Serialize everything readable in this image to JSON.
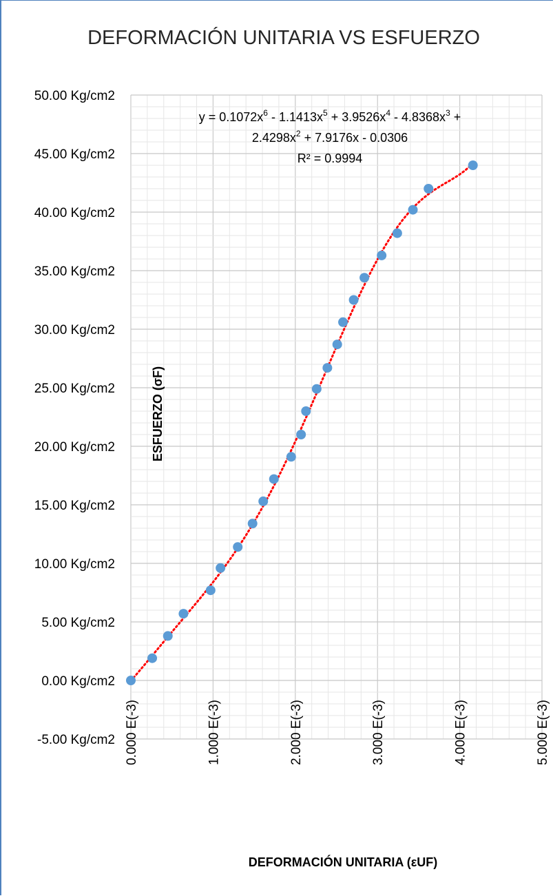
{
  "chart_data": {
    "type": "scatter",
    "title": "DEFORMACIÓN UNITARIA VS ESFUERZO",
    "xlabel": "DEFORMACIÓN UNITARIA (εUF)",
    "ylabel": "ESFUERZO (σF)",
    "xlim": [
      0,
      5
    ],
    "ylim": [
      -5,
      50
    ],
    "x_ticks": [
      0,
      1,
      2,
      3,
      4,
      5
    ],
    "x_tick_labels": [
      "0.000 E(-3)",
      "1.000 E(-3)",
      "2.000 E(-3)",
      "3.000 E(-3)",
      "4.000 E(-3)",
      "5.000 E(-3)"
    ],
    "y_ticks": [
      -5,
      0,
      5,
      10,
      15,
      20,
      25,
      30,
      35,
      40,
      45,
      50
    ],
    "y_tick_labels": [
      "-5.00 Kg/cm2",
      "0.00 Kg/cm2",
      "5.00 Kg/cm2",
      "10.00 Kg/cm2",
      "15.00 Kg/cm2",
      "20.00 Kg/cm2",
      "25.00 Kg/cm2",
      "30.00 Kg/cm2",
      "35.00 Kg/cm2",
      "40.00 Kg/cm2",
      "45.00 Kg/cm2",
      "50.00 Kg/cm2"
    ],
    "grid": true,
    "minor_grid": true,
    "series": [
      {
        "marker_color": "#5b9bd5",
        "x": [
          0.0,
          0.26,
          0.45,
          0.64,
          0.97,
          1.09,
          1.3,
          1.48,
          1.61,
          1.74,
          1.95,
          2.07,
          2.13,
          2.26,
          2.39,
          2.51,
          2.58,
          2.71,
          2.84,
          3.05,
          3.24,
          3.43,
          3.62,
          4.16
        ],
        "y": [
          0.0,
          1.9,
          3.8,
          5.7,
          7.7,
          9.6,
          11.4,
          13.4,
          15.3,
          17.2,
          19.1,
          21.0,
          23.0,
          24.9,
          26.7,
          28.7,
          30.6,
          32.5,
          34.4,
          36.3,
          38.2,
          40.2,
          42.0,
          44.0
        ]
      }
    ],
    "trendline": {
      "type": "polynomial",
      "order": 6,
      "color": "#ff0000",
      "style": "dotted",
      "coefficients": [
        0.1072,
        -1.1413,
        3.9526,
        -4.8368,
        2.4298,
        7.9176,
        -0.0306
      ],
      "equation_parts": {
        "t1": "y = 0.1072x",
        "e1": "6",
        "t2": " - 1.1413x",
        "e2": "5",
        "t3": " + 3.9526x",
        "e3": "4",
        "t4": " - 4.8368x",
        "e4": "3",
        "t5": " +",
        "t6": "2.4298x",
        "e6": "2",
        "t7": " + 7.9176x - 0.0306"
      },
      "r_squared": "R² = 0.9994"
    }
  }
}
